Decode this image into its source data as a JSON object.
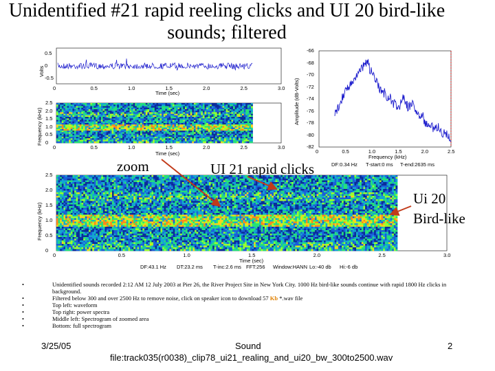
{
  "slide": {
    "title": "Unidentified #21 rapid reeling clicks and UI 20 bird-like sounds; filtered",
    "callouts": {
      "zoom": "zoom",
      "clicks": "UI 21 rapid clicks",
      "bird_line1": "Ui 20",
      "bird_line2": "Bird-like"
    },
    "bullets": [
      "Unidentified sounds recorded 2:12 AM 12 July 2003 at Pier 26, the River Project Site in New York City. 1000 Hz bird-like sounds continue with rapid 1800 Hz clicks in background.",
      "Top left: waveform",
      "Top right: power spectra",
      "Middle left: Spectrogram of zoomed area",
      "Bottom: full spectrogram"
    ],
    "bullet_filtered": {
      "before": "Filtered below 300 and over 2500 Hz to remove noise, click on speaker icon to download 57 ",
      "highlight": "Kb",
      "after": " *.wav file"
    },
    "footer": {
      "date": "3/25/05",
      "label": "Sound",
      "file": "file:track035(r0038)_clip78_ui21_realing_and_ui20_bw_300to2500.wav",
      "page": "2"
    }
  },
  "chart_data": [
    {
      "type": "line",
      "name": "waveform",
      "xlabel": "Time (sec)",
      "ylabel": "Volts",
      "x_ticks": [
        "0",
        "0.5",
        "1.0",
        "1.5",
        "2.0",
        "2.5",
        "3.0"
      ],
      "y_ticks": [
        "0.5",
        "0",
        "-0.5"
      ],
      "xlim": [
        0,
        3.0
      ],
      "ylim": [
        -0.5,
        0.5
      ],
      "color": "#1a1acc"
    },
    {
      "type": "heatmap",
      "name": "zoomed-spectrogram",
      "xlabel": "Time (sec)",
      "ylabel": "Frequency (kHz)",
      "x_ticks": [
        "0",
        "0.5",
        "1.0",
        "1.5",
        "2.0",
        "2.5",
        "3.0"
      ],
      "y_ticks": [
        "2.5",
        "2.0",
        "1.5",
        "1.0",
        "0.5",
        "0"
      ],
      "xlim": [
        0,
        3.0
      ],
      "ylim": [
        0,
        2.5
      ]
    },
    {
      "type": "line",
      "name": "power-spectrum",
      "xlabel": "Frequency (kHz)",
      "ylabel": "Amplitude (dB-Volts)",
      "x_ticks": [
        "0",
        "0.5",
        "1.0",
        "1.5",
        "2.0",
        "2.5"
      ],
      "y_ticks": [
        "-66",
        "-68",
        "-70",
        "-72",
        "-74",
        "-76",
        "-78",
        "-80",
        "-82"
      ],
      "xlim": [
        0,
        2.5
      ],
      "ylim": [
        -82,
        -66
      ],
      "color": "#1a1acc",
      "cursor_color": "#dd0000",
      "info": [
        "DF:0.34 Hz",
        "T-start:0 ms",
        "T-end:2635 ms"
      ],
      "points": [
        [
          0.3,
          -76.8
        ],
        [
          0.35,
          -75.5
        ],
        [
          0.4,
          -74.8
        ],
        [
          0.45,
          -73.5
        ],
        [
          0.5,
          -72.5
        ],
        [
          0.55,
          -72.2
        ],
        [
          0.6,
          -71.5
        ],
        [
          0.65,
          -71.0
        ],
        [
          0.7,
          -70.3
        ],
        [
          0.75,
          -69.8
        ],
        [
          0.8,
          -69.0
        ],
        [
          0.85,
          -68.6
        ],
        [
          0.88,
          -68.0
        ],
        [
          0.9,
          -68.5
        ],
        [
          0.93,
          -67.5
        ],
        [
          0.95,
          -68.8
        ],
        [
          1.0,
          -69.6
        ],
        [
          1.05,
          -70.8
        ],
        [
          1.1,
          -71.5
        ],
        [
          1.15,
          -72.5
        ],
        [
          1.2,
          -73.2
        ],
        [
          1.25,
          -72.8
        ],
        [
          1.3,
          -74.0
        ],
        [
          1.35,
          -73.5
        ],
        [
          1.4,
          -75.0
        ],
        [
          1.45,
          -74.5
        ],
        [
          1.5,
          -75.8
        ],
        [
          1.55,
          -74.5
        ],
        [
          1.6,
          -73.8
        ],
        [
          1.65,
          -74.8
        ],
        [
          1.7,
          -75.5
        ],
        [
          1.75,
          -74.6
        ],
        [
          1.8,
          -75.2
        ],
        [
          1.85,
          -76.3
        ],
        [
          1.9,
          -76.8
        ],
        [
          1.95,
          -76.5
        ],
        [
          2.0,
          -77.8
        ],
        [
          2.05,
          -78.5
        ],
        [
          2.1,
          -78.0
        ],
        [
          2.15,
          -78.8
        ],
        [
          2.2,
          -79.2
        ],
        [
          2.25,
          -78.6
        ],
        [
          2.3,
          -79.4
        ],
        [
          2.35,
          -79.8
        ],
        [
          2.4,
          -79.5
        ],
        [
          2.45,
          -80.3
        ],
        [
          2.5,
          -81.0
        ]
      ]
    },
    {
      "type": "heatmap",
      "name": "full-spectrogram",
      "xlabel": "Time (sec)",
      "ylabel": "Frequency (kHz)",
      "x_ticks": [
        "0",
        "0.5",
        "1.0",
        "1.5",
        "2.0",
        "2.5",
        "3.0"
      ],
      "y_ticks": [
        "2.5",
        "2.0",
        "1.5",
        "1.0",
        "0.5",
        "0"
      ],
      "xlim": [
        0,
        3.0
      ],
      "ylim": [
        0,
        2.5
      ],
      "info": [
        "DF:43.1 Hz",
        "DT:23.2 ms",
        "T-inc:2.6 ms",
        "FFT:256",
        "Window:HANN",
        "Lo:-40 db",
        "Hi:-6 db"
      ]
    }
  ]
}
